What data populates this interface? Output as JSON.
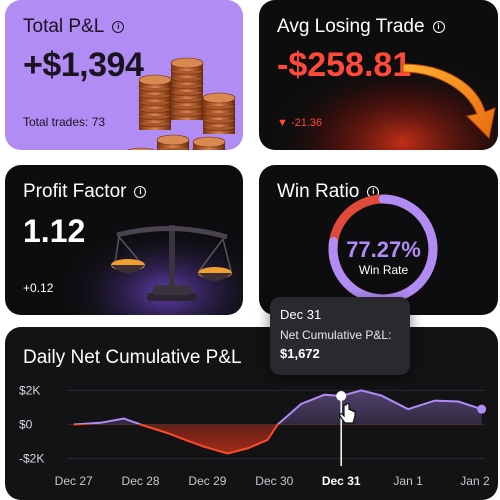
{
  "total_pnl": {
    "title": "Total P&L",
    "value": "+$1,394",
    "trades": "Total trades: 73",
    "icons": [
      "info-icon",
      "coins-icon"
    ]
  },
  "avg_losing": {
    "title": "Avg Losing Trade",
    "value": "-$258.81",
    "delta": "▼ -21.36",
    "icons": [
      "info-icon",
      "arrow-down-right-icon"
    ]
  },
  "profit_factor": {
    "title": "Profit Factor",
    "value": "1.12",
    "delta": "+0.12",
    "icons": [
      "info-icon",
      "balance-scale-icon"
    ]
  },
  "win_ratio": {
    "title": "Win Ratio",
    "value": "77.27%",
    "label": "Win Rate",
    "ratio": 0.7727,
    "icons": [
      "info-icon"
    ]
  },
  "chart": {
    "title": "Daily Net Cumulative P&L",
    "tooltip": {
      "date": "Dec 31",
      "label": "Net Cumulative P&L:",
      "value": "$1,672"
    }
  },
  "colors": {
    "purple": "#b18cf5",
    "red": "#ff4a3a",
    "card_dark": "#0d0d0f"
  },
  "chart_data": {
    "type": "line",
    "title": "Daily Net Cumulative P&L",
    "y_tick_labels": [
      "$2K",
      "$0",
      "-$2K"
    ],
    "y_ticks": [
      2000,
      0,
      -2000
    ],
    "ylim": [
      -2200,
      2200
    ],
    "x_tick_labels": [
      "Dec 27",
      "Dec 28",
      "Dec 29",
      "Dec 30",
      "Dec 31",
      "Jan 1",
      "Jan 2"
    ],
    "x": [
      0,
      0.4,
      0.75,
      1.0,
      1.4,
      1.7,
      1.95,
      2.3,
      2.6,
      2.9,
      3.05,
      3.4,
      3.75,
      4.0,
      4.3,
      4.6,
      5.0,
      5.4,
      5.75,
      6.1
    ],
    "values": [
      0,
      100,
      350,
      0,
      -500,
      -950,
      -1300,
      -1700,
      -1400,
      -900,
      0,
      1200,
      1750,
      1672,
      2000,
      1700,
      900,
      1400,
      1350,
      900
    ],
    "highlight_x": 4.0,
    "grid": true
  }
}
